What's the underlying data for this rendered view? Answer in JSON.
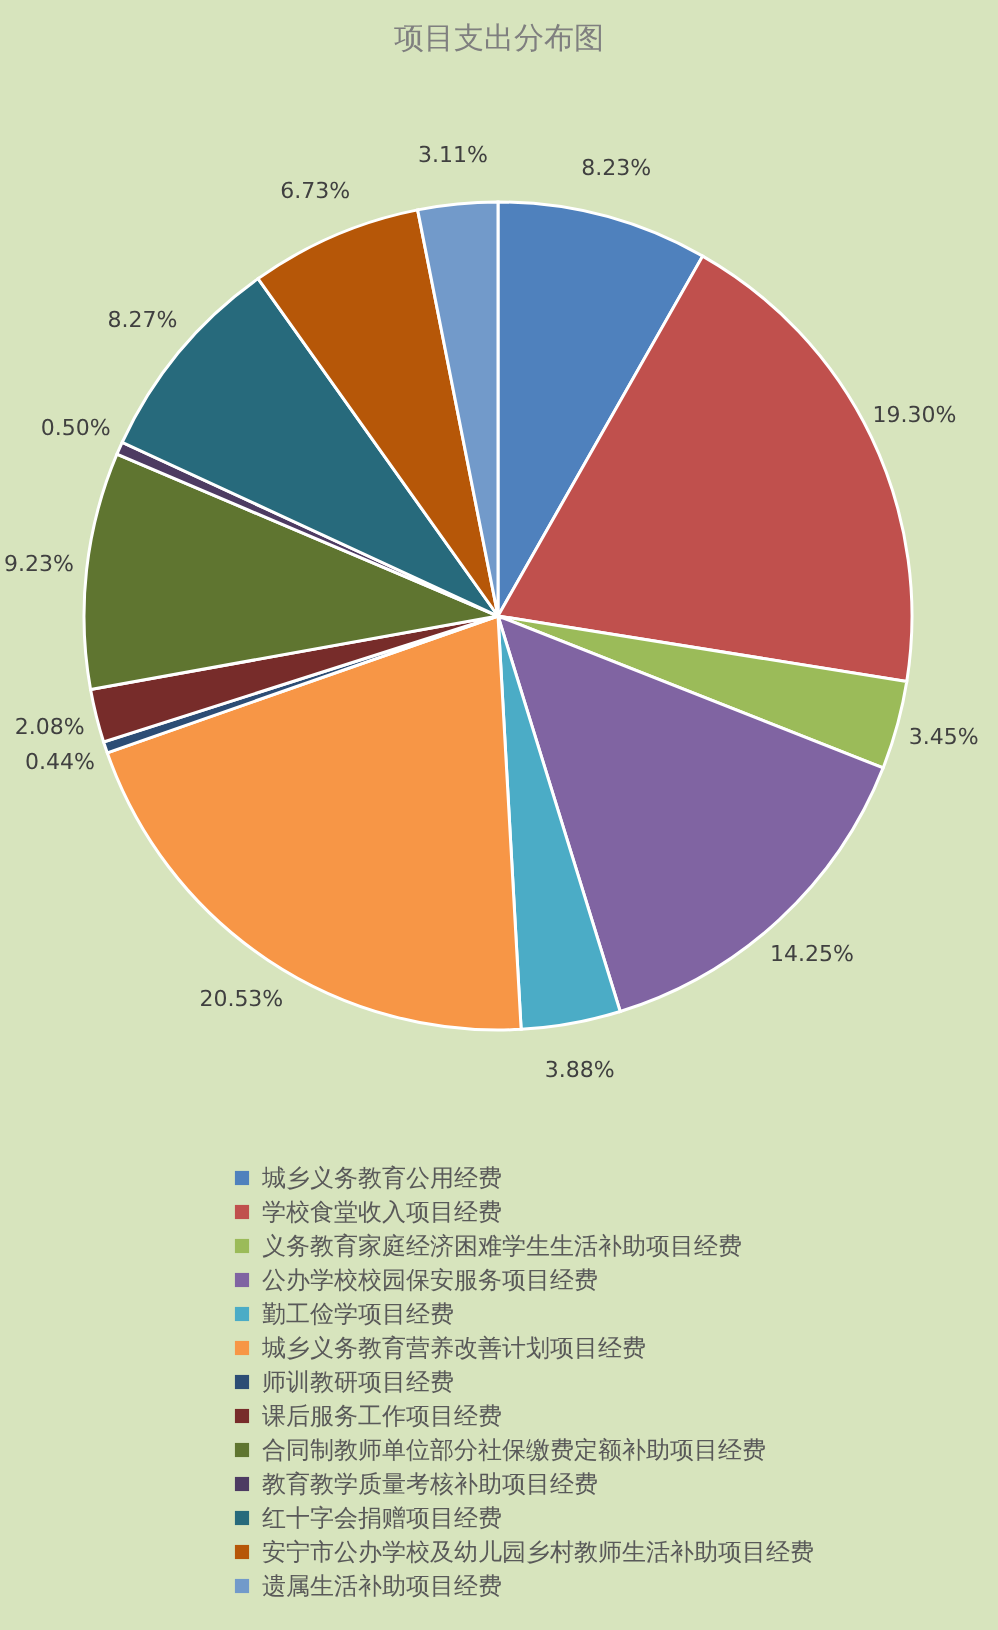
{
  "chart_data": {
    "type": "pie",
    "title": "项目支出分布图",
    "categories": [
      "城乡义务教育公用经费",
      "学校食堂收入项目经费",
      "义务教育家庭经济困难学生生活补助项目经费",
      "公办学校校园保安服务项目经费",
      "勤工俭学项目经费",
      "城乡义务教育营养改善计划项目经费",
      "师训教研项目经费",
      "课后服务工作项目经费",
      "合同制教师单位部分社保缴费定额补助项目经费",
      "教育教学质量考核补助项目经费",
      "红十字会捐赠项目经费",
      "安宁市公办学校及幼儿园乡村教师生活补助项目经费",
      "遗属生活补助项目经费"
    ],
    "values": [
      8.23,
      19.3,
      3.45,
      14.25,
      3.88,
      20.53,
      0.44,
      2.08,
      9.23,
      0.5,
      8.27,
      6.73,
      3.11
    ],
    "colors": [
      "#4f81bd",
      "#c0504d",
      "#9bbb59",
      "#8064a2",
      "#4bacc6",
      "#f79646",
      "#2c4d75",
      "#772c2a",
      "#5f7530",
      "#4d3b62",
      "#276a7c",
      "#b65708",
      "#729aca"
    ],
    "value_labels": [
      "8.23%",
      "19.30%",
      "3.45%",
      "14.25%",
      "3.88%",
      "20.53%",
      "0.44%",
      "2.08%",
      "9.23%",
      "0.50%",
      "8.27%",
      "6.73%",
      "3.11%"
    ],
    "legend": "bottom"
  }
}
